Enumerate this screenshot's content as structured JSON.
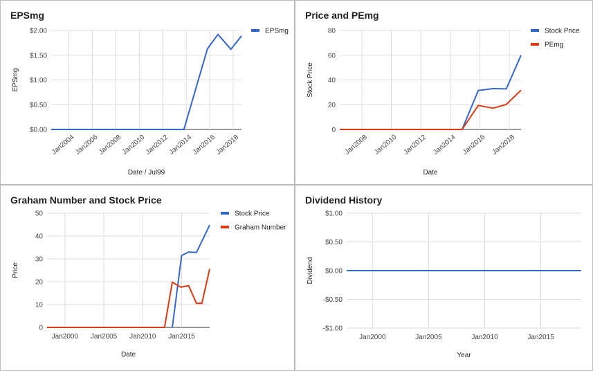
{
  "charts": [
    {
      "title": "EPSmg",
      "xlabel": "Date / Jul99",
      "ylabel": "EPSmg",
      "xTicks": [
        "Jan2004",
        "Jan2006",
        "Jan2008",
        "Jan2010",
        "Jan2012",
        "Jan2014",
        "Jan2016",
        "Jan2018"
      ],
      "yTicks": [
        "$0.00",
        "$0.50",
        "$1.00",
        "$1.50",
        "$2.00"
      ],
      "legend": [
        "EPSmg"
      ]
    },
    {
      "title": "Price and PEmg",
      "xlabel": "Date",
      "ylabel": "Stock Price",
      "xTicks": [
        "Jan2008",
        "Jan2010",
        "Jan2012",
        "Jan2014",
        "Jan2016",
        "Jan2018"
      ],
      "yTicks": [
        "0",
        "20",
        "40",
        "60",
        "80"
      ],
      "legend": [
        "Stock Price",
        "PEmg"
      ]
    },
    {
      "title": "Graham Number and Stock Price",
      "xlabel": "Date",
      "ylabel": "Price",
      "xTicks": [
        "Jan2000",
        "Jan2005",
        "Jan2010",
        "Jan2015"
      ],
      "yTicks": [
        "0",
        "10",
        "20",
        "30",
        "40",
        "50"
      ],
      "legend": [
        "Stock Price",
        "Graham Number"
      ]
    },
    {
      "title": "Dividend History",
      "xlabel": "Year",
      "ylabel": "Dividend",
      "xTicks": [
        "Jan2000",
        "Jan2005",
        "Jan2010",
        "Jan2015"
      ],
      "yTicks": [
        "-$1.00",
        "-$0.50",
        "$0.00",
        "$0.50",
        "$1.00"
      ],
      "legend": []
    }
  ],
  "chart_data": [
    {
      "type": "line",
      "title": "EPSmg",
      "xlabel": "Date / Jul99",
      "ylabel": "EPSmg",
      "xlim": [
        2002.5,
        2018.7
      ],
      "ylim": [
        0,
        2
      ],
      "grid": true,
      "legend_position": "right",
      "series": [
        {
          "name": "EPSmg",
          "color": "#3366cc",
          "x": [
            2002.5,
            2013.8,
            2015.8,
            2016.7,
            2017.8,
            2018.7
          ],
          "y": [
            0,
            0,
            1.63,
            1.92,
            1.62,
            1.89
          ]
        }
      ]
    },
    {
      "type": "line",
      "title": "Price and PEmg",
      "xlabel": "Date",
      "ylabel": "Stock Price",
      "xlim": [
        2006.5,
        2018.8
      ],
      "ylim": [
        0,
        80
      ],
      "grid": true,
      "legend_position": "right",
      "series": [
        {
          "name": "Stock Price",
          "color": "#3366cc",
          "x": [
            2006.5,
            2014.8,
            2015.9,
            2016.9,
            2017.8,
            2018.8
          ],
          "y": [
            0,
            0,
            31.5,
            33,
            32.8,
            60
          ]
        },
        {
          "name": "PEmg",
          "color": "#dc3912",
          "x": [
            2006.5,
            2014.8,
            2015.9,
            2016.9,
            2017.8,
            2018.8
          ],
          "y": [
            0,
            0,
            19.4,
            17.2,
            20.2,
            31.7
          ]
        }
      ]
    },
    {
      "type": "line",
      "title": "Graham Number and Stock Price",
      "xlabel": "Date",
      "ylabel": "Price",
      "xlim": [
        1997.7,
        2018.6
      ],
      "ylim": [
        0,
        50
      ],
      "grid": true,
      "legend_position": "right",
      "series": [
        {
          "name": "Stock Price",
          "color": "#3366cc",
          "x": [
            2013.8,
            2015.0,
            2015.9,
            2016.9,
            2018.6
          ],
          "y": [
            0,
            31.5,
            33,
            32.8,
            44.8
          ]
        },
        {
          "name": "Graham Number",
          "color": "#dc3912",
          "x": [
            1997.7,
            2012.8,
            2013.8,
            2014.9,
            2015.9,
            2016.9,
            2017.6,
            2018.6
          ],
          "y": [
            0,
            0,
            19.8,
            17.6,
            18.3,
            10.5,
            10.5,
            25.6
          ]
        }
      ]
    },
    {
      "type": "line",
      "title": "Dividend History",
      "xlabel": "Year",
      "ylabel": "Dividend",
      "xlim": [
        1997.7,
        2018.6
      ],
      "ylim": [
        -1,
        1
      ],
      "grid": true,
      "series": [
        {
          "color": "#3366cc",
          "x": [
            1997.7,
            2018.6
          ],
          "y": [
            0,
            0
          ]
        }
      ]
    }
  ]
}
